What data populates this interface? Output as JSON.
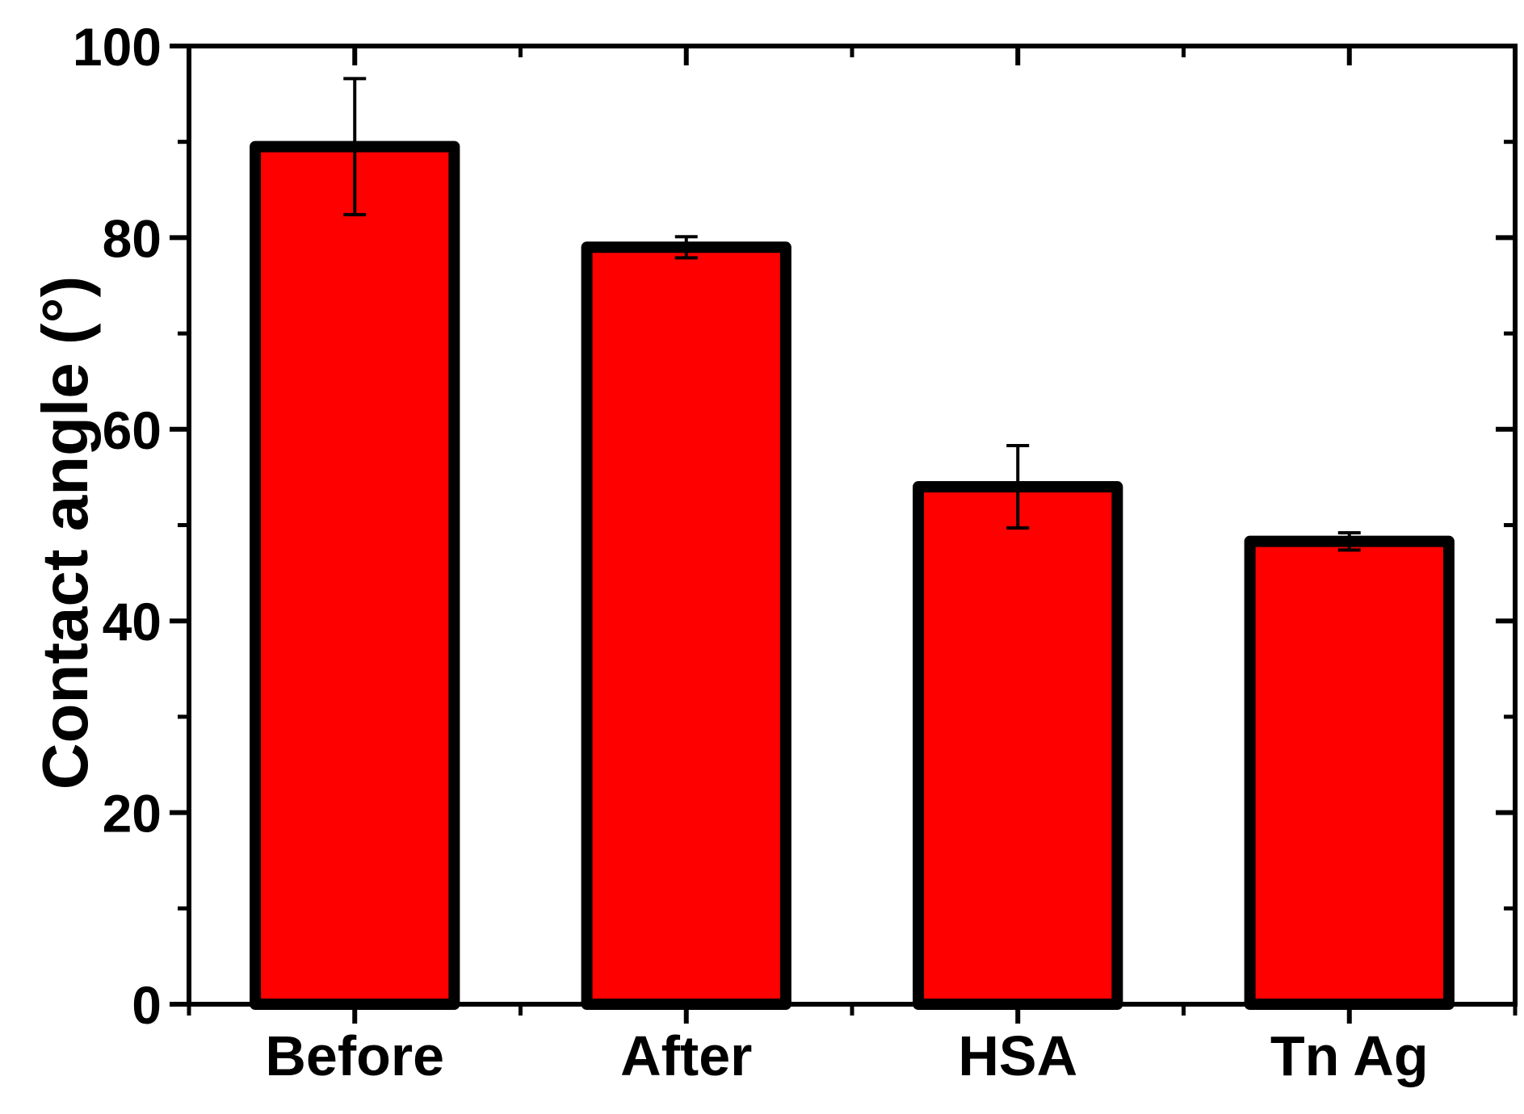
{
  "chart_data": {
    "type": "bar",
    "title": "",
    "xlabel": "",
    "ylabel": "Contact angle (°)",
    "categories": [
      "Before",
      "After",
      "HSA",
      "Tn Ag"
    ],
    "values": [
      89.5,
      79.0,
      54.0,
      48.3
    ],
    "errors": [
      7.1,
      1.1,
      4.3,
      0.9
    ],
    "ylim": [
      0,
      100
    ],
    "yticks": [
      0,
      20,
      40,
      60,
      80,
      100
    ],
    "yminor_step": 10,
    "bar_color": "#ff0000",
    "edge_color": "#000000",
    "grid": false,
    "legend": "none"
  }
}
